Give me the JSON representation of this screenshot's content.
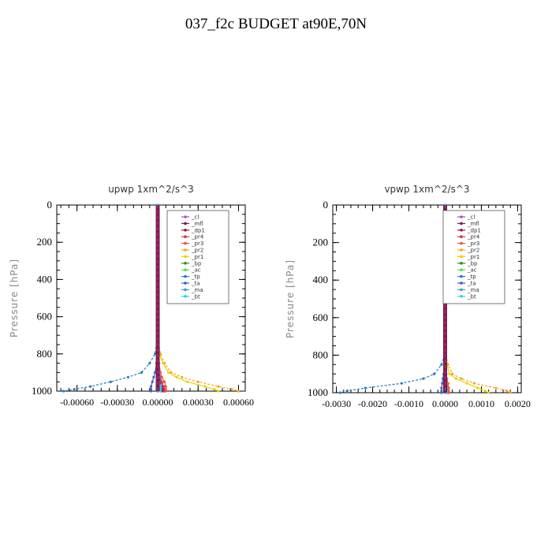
{
  "title": "037_f2c  BUDGET at90E,70N",
  "legend_entries": [
    "_cl",
    "_mfl",
    "_dp1",
    "_pr4",
    "_pr3",
    "_pr2",
    "_pr1",
    "_bp",
    "_ac",
    "_tp",
    "_ta",
    "_ma",
    "_bt"
  ],
  "legend_colors": [
    "#9b59b6",
    "#7b1a5a",
    "#a0153e",
    "#d2364b",
    "#e8524a",
    "#f5a623",
    "#e6d200",
    "#2e8b2e",
    "#55dd55",
    "#1f7fbf",
    "#3a60c0",
    "#3aa0d0",
    "#22d3ee"
  ],
  "chart_data": [
    {
      "type": "line",
      "title": "upwp   1xm^2/s^3",
      "ylabel": "Pressure [hPa]",
      "ylim": [
        1000,
        0
      ],
      "xlim": [
        -0.00075,
        0.00065
      ],
      "yticks": [
        0,
        200,
        400,
        600,
        800,
        1000
      ],
      "ytick_labels": [
        "0",
        "200",
        "400",
        "600",
        "800",
        "1000"
      ],
      "xticks": [
        -0.0006,
        -0.0003,
        0.0,
        0.0003,
        0.0006
      ],
      "xtick_labels": [
        "-0.00060",
        "-0.00030",
        "0.00000",
        "0.00030",
        "0.00060"
      ],
      "legend_position": "top-right",
      "pressure": [
        0,
        100,
        200,
        300,
        400,
        500,
        600,
        700,
        800,
        850,
        900,
        925,
        950,
        975,
        990,
        1000
      ],
      "series": [
        {
          "key": "_cl",
          "values": [
            0,
            0,
            0,
            0,
            0,
            0,
            0,
            0,
            0,
            0,
            0,
            1e-05,
            2e-05,
            3e-05,
            3e-05,
            3e-05
          ]
        },
        {
          "key": "_mfl",
          "values": [
            0,
            0,
            0,
            0,
            0,
            0,
            0,
            0,
            0,
            0,
            1e-05,
            1e-05,
            2e-05,
            2e-05,
            2e-05,
            2e-05
          ]
        },
        {
          "key": "_dp1",
          "values": [
            0,
            0,
            0,
            0,
            0,
            0,
            0,
            0,
            0,
            0,
            1e-05,
            2e-05,
            3e-05,
            4e-05,
            4e-05,
            4e-05
          ]
        },
        {
          "key": "_pr4",
          "values": [
            0,
            0,
            0,
            0,
            0,
            0,
            0,
            0,
            0,
            0,
            1e-05,
            2e-05,
            3e-05,
            5e-05,
            5e-05,
            5e-05
          ]
        },
        {
          "key": "_pr3",
          "values": [
            0,
            0,
            0,
            0,
            0,
            0,
            0,
            0,
            0,
            1e-05,
            2e-05,
            3e-05,
            5e-05,
            6e-05,
            6e-05,
            6e-05
          ]
        },
        {
          "key": "_pr2",
          "values": [
            0,
            0,
            0,
            0,
            0,
            0,
            0,
            0,
            2e-05,
            5e-05,
            0.0001,
            0.00018,
            0.0003,
            0.00045,
            0.00055,
            0.0006
          ]
        },
        {
          "key": "_pr1",
          "values": [
            0,
            0,
            0,
            0,
            0,
            0,
            0,
            0,
            1e-05,
            4e-05,
            8e-05,
            0.00014,
            0.00022,
            0.00035,
            0.00042,
            0.00045
          ]
        },
        {
          "key": "_bp",
          "values": [
            0,
            0,
            0,
            0,
            0,
            0,
            0,
            0,
            0,
            0,
            0,
            0,
            0,
            0,
            0,
            0
          ]
        },
        {
          "key": "_ac",
          "values": [
            0,
            0,
            0,
            0,
            0,
            0,
            0,
            0,
            0,
            0,
            0,
            0,
            0,
            0,
            0,
            0
          ]
        },
        {
          "key": "_tp",
          "values": [
            0,
            0,
            0,
            0,
            0,
            0,
            0,
            0,
            -2e-05,
            -6e-05,
            -0.00012,
            -0.00022,
            -0.00035,
            -0.0005,
            -0.00062,
            -0.0007
          ]
        },
        {
          "key": "_ta",
          "values": [
            0,
            0,
            0,
            0,
            0,
            0,
            0,
            0,
            0,
            -1e-05,
            -2e-05,
            -3e-05,
            -4e-05,
            -5e-05,
            -5e-05,
            -5e-05
          ]
        },
        {
          "key": "_ma",
          "values": [
            0,
            0,
            0,
            0,
            0,
            0,
            0,
            0,
            0,
            0,
            0,
            0,
            0,
            0,
            0,
            0
          ]
        },
        {
          "key": "_bt",
          "values": [
            0,
            0,
            0,
            0,
            0,
            0,
            0,
            0,
            0,
            0,
            1e-05,
            1e-05,
            1e-05,
            2e-05,
            2e-05,
            2e-05
          ]
        }
      ]
    },
    {
      "type": "line",
      "title": "vpwp   1xm^2/s^3",
      "ylabel": "Pressure [hPa]",
      "ylim": [
        1000,
        0
      ],
      "xlim": [
        -0.0031,
        0.0021
      ],
      "yticks": [
        0,
        200,
        400,
        600,
        800,
        1000
      ],
      "ytick_labels": [
        "0",
        "200",
        "400",
        "600",
        "800",
        "1000"
      ],
      "xticks": [
        -0.003,
        -0.002,
        -0.001,
        0.0,
        0.001,
        0.002
      ],
      "xtick_labels": [
        "-0.0030",
        "-0.0020",
        "-0.0010",
        "0.0000",
        "0.0010",
        "0.0020"
      ],
      "legend_position": "top-right",
      "pressure": [
        0,
        100,
        200,
        300,
        400,
        500,
        600,
        700,
        800,
        850,
        900,
        925,
        950,
        975,
        990,
        1000
      ],
      "series": [
        {
          "key": "_cl",
          "values": [
            0,
            0,
            0,
            0,
            0,
            0,
            0,
            0,
            0,
            0,
            0,
            2e-05,
            3e-05,
            4e-05,
            4e-05,
            4e-05
          ]
        },
        {
          "key": "_mfl",
          "values": [
            0,
            0,
            0,
            0,
            0,
            0,
            0,
            0,
            0,
            0,
            0,
            1e-05,
            2e-05,
            3e-05,
            3e-05,
            3e-05
          ]
        },
        {
          "key": "_dp1",
          "values": [
            0,
            0,
            0,
            0,
            0,
            0,
            0,
            0,
            0,
            0,
            2e-05,
            3e-05,
            5e-05,
            6e-05,
            6e-05,
            6e-05
          ]
        },
        {
          "key": "_pr4",
          "values": [
            0,
            0,
            0,
            0,
            0,
            0,
            0,
            0,
            0,
            0,
            2e-05,
            4e-05,
            6e-05,
            8e-05,
            8e-05,
            8e-05
          ]
        },
        {
          "key": "_pr3",
          "values": [
            0,
            0,
            0,
            0,
            0,
            0,
            0,
            0,
            0,
            1e-05,
            3e-05,
            5e-05,
            8e-05,
            0.0001,
            0.0001,
            0.0001
          ]
        },
        {
          "key": "_pr2",
          "values": [
            0,
            0,
            0,
            0,
            0,
            0,
            0,
            0,
            2e-05,
            8e-05,
            0.0002,
            0.00045,
            0.0008,
            0.0014,
            0.0017,
            0.0018
          ]
        },
        {
          "key": "_pr1",
          "values": [
            0,
            0,
            0,
            0,
            0,
            0,
            0,
            0,
            1e-05,
            5e-05,
            0.00012,
            0.0003,
            0.0006,
            0.0009,
            0.0011,
            0.0012
          ]
        },
        {
          "key": "_bp",
          "values": [
            0,
            0,
            0,
            0,
            0,
            0,
            0,
            0,
            0,
            0,
            0,
            0,
            0,
            0,
            0,
            0
          ]
        },
        {
          "key": "_ac",
          "values": [
            0,
            0,
            0,
            0,
            0,
            0,
            0,
            0,
            0,
            0,
            0,
            0,
            0,
            0,
            0,
            0
          ]
        },
        {
          "key": "_tp",
          "values": [
            0,
            0,
            0,
            0,
            0,
            0,
            0,
            0,
            -2e-05,
            -0.0001,
            -0.0003,
            -0.0006,
            -0.0012,
            -0.0022,
            -0.0027,
            -0.0029
          ]
        },
        {
          "key": "_ta",
          "values": [
            0,
            0,
            0,
            0,
            0,
            0,
            0,
            0,
            0,
            -2e-05,
            -4e-05,
            -6e-05,
            -8e-05,
            -0.0001,
            -0.0001,
            -0.0001
          ]
        },
        {
          "key": "_ma",
          "values": [
            0,
            0,
            0,
            0,
            0,
            0,
            0,
            0,
            0,
            0,
            0,
            0,
            0,
            0,
            0,
            0
          ]
        },
        {
          "key": "_bt",
          "values": [
            0,
            0,
            0,
            0,
            0,
            0,
            0,
            0,
            0,
            0,
            2e-05,
            3e-05,
            3e-05,
            4e-05,
            4e-05,
            4e-05
          ]
        }
      ]
    }
  ]
}
